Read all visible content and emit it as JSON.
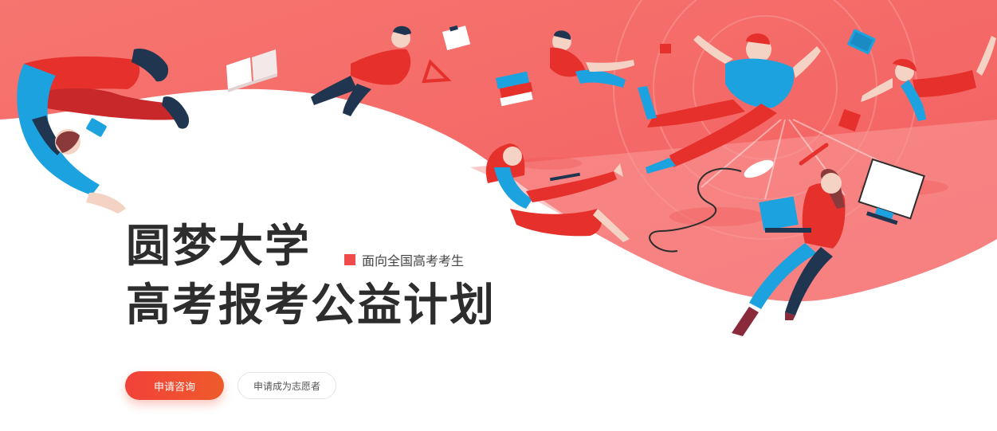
{
  "hero": {
    "title_line1": "圆梦大学",
    "title_line2": "高考报考公益计划",
    "tagline": "面向全国高考考生"
  },
  "actions": {
    "primary_label": "申请咨询",
    "secondary_label": "申请成为志愿者"
  },
  "colors": {
    "accent": "#ef4b4b",
    "banner": "#f36b6b",
    "figure_blue": "#1da2e0",
    "figure_navy": "#1f3550",
    "figure_red": "#e6302b"
  }
}
